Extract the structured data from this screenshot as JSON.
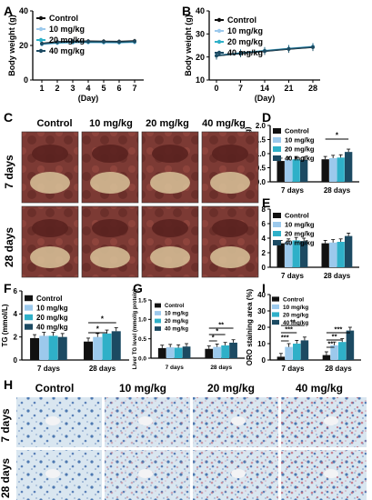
{
  "legend": [
    "Control",
    "10 mg/kg",
    "20 mg/kg",
    "40 mg/kg"
  ],
  "colors": {
    "Control": "#111111",
    "10 mg/kg": "#9cc9ec",
    "20 mg/kg": "#2fb0c8",
    "40 mg/kg": "#1c4a62"
  },
  "panel_letters": [
    "A",
    "B",
    "C",
    "D",
    "E",
    "F",
    "G",
    "I",
    "H"
  ],
  "photo_c": {
    "columns": [
      "Control",
      "10 mg/kg",
      "20 mg/kg",
      "40 mg/kg"
    ],
    "rows": [
      "7 days",
      "28 days"
    ]
  },
  "photo_h": {
    "columns": [
      "Control",
      "10 mg/kg",
      "20 mg/kg",
      "40 mg/kg"
    ],
    "rows": [
      "7 days",
      "28 days"
    ]
  },
  "chart_data": [
    {
      "id": "A",
      "type": "line",
      "ylabel": "Body weight (g)",
      "xlabel": "(Day)",
      "x": [
        1,
        2,
        3,
        4,
        5,
        6,
        7
      ],
      "ylim": [
        0,
        40
      ],
      "yticks": [
        0,
        20,
        40
      ],
      "series": [
        {
          "name": "Control",
          "values": [
            21.2,
            22.1,
            22.4,
            22.5,
            22.4,
            22.3,
            22.6
          ]
        },
        {
          "name": "10 mg/kg",
          "values": [
            20.6,
            21.3,
            21.6,
            21.7,
            21.6,
            21.5,
            21.8
          ]
        },
        {
          "name": "20 mg/kg",
          "values": [
            20.9,
            21.6,
            21.9,
            22.0,
            21.9,
            21.8,
            22.1
          ]
        },
        {
          "name": "40 mg/kg",
          "values": [
            21.0,
            21.8,
            22.1,
            22.2,
            22.1,
            22.0,
            22.3
          ]
        }
      ]
    },
    {
      "id": "B",
      "type": "line",
      "ylabel": "Body weight (g)",
      "xlabel": "(Day)",
      "x": [
        0,
        7,
        14,
        21,
        28
      ],
      "ylim": [
        10,
        40
      ],
      "yticks": [
        10,
        20,
        30,
        40
      ],
      "series": [
        {
          "name": "Control",
          "values": [
            20.5,
            21.5,
            22.5,
            23.4,
            24.2
          ]
        },
        {
          "name": "10 mg/kg",
          "values": [
            20.7,
            21.8,
            22.8,
            23.7,
            24.6
          ]
        },
        {
          "name": "20 mg/kg",
          "values": [
            20.6,
            21.7,
            22.7,
            23.6,
            24.4
          ]
        },
        {
          "name": "40 mg/kg",
          "values": [
            20.6,
            21.6,
            22.6,
            23.5,
            24.3
          ]
        }
      ]
    },
    {
      "id": "D",
      "type": "bar",
      "ylabel": "Liver weight (g)",
      "categories": [
        "7 days",
        "28 days"
      ],
      "ylim": [
        0,
        2.0
      ],
      "yticks": [
        "0.0",
        "0.5",
        "1.0",
        "1.5",
        "2.0"
      ],
      "series": [
        {
          "name": "Control",
          "values": [
            0.74,
            0.8
          ]
        },
        {
          "name": "10 mg/kg",
          "values": [
            0.78,
            0.84
          ]
        },
        {
          "name": "20 mg/kg",
          "values": [
            0.8,
            0.86
          ]
        },
        {
          "name": "40 mg/kg",
          "values": [
            0.78,
            1.06
          ]
        }
      ],
      "significance": [
        "*"
      ]
    },
    {
      "id": "E",
      "type": "bar",
      "ylabel": "Liver index (%)",
      "categories": [
        "7 days",
        "28 days"
      ],
      "ylim": [
        0,
        8
      ],
      "yticks": [
        0,
        2,
        4,
        6,
        8
      ],
      "series": [
        {
          "name": "Control",
          "values": [
            3.3,
            3.3
          ]
        },
        {
          "name": "10 mg/kg",
          "values": [
            3.5,
            3.4
          ]
        },
        {
          "name": "20 mg/kg",
          "values": [
            3.7,
            3.5
          ]
        },
        {
          "name": "40 mg/kg",
          "values": [
            3.6,
            4.3
          ]
        }
      ]
    },
    {
      "id": "F",
      "type": "bar",
      "ylabel": "TG (mmol/L)",
      "categories": [
        "7 days",
        "28 days"
      ],
      "ylim": [
        0,
        6
      ],
      "yticks": [
        0,
        2,
        4,
        6
      ],
      "series": [
        {
          "name": "Control",
          "values": [
            1.9,
            1.6
          ]
        },
        {
          "name": "10 mg/kg",
          "values": [
            2.1,
            2.0
          ]
        },
        {
          "name": "20 mg/kg",
          "values": [
            2.1,
            2.3
          ]
        },
        {
          "name": "40 mg/kg",
          "values": [
            2.0,
            2.5
          ]
        }
      ],
      "significance": [
        "*",
        "*"
      ]
    },
    {
      "id": "G",
      "type": "bar",
      "ylabel": "Liver TG level (mmol/g protein)",
      "categories": [
        "7 days",
        "28 days"
      ],
      "ylim": [
        0,
        1.5
      ],
      "yticks": [
        "0.0",
        "0.5",
        "1.0",
        "1.5"
      ],
      "series": [
        {
          "name": "Control",
          "values": [
            0.26,
            0.24
          ]
        },
        {
          "name": "10 mg/kg",
          "values": [
            0.28,
            0.29
          ]
        },
        {
          "name": "20 mg/kg",
          "values": [
            0.27,
            0.33
          ]
        },
        {
          "name": "40 mg/kg",
          "values": [
            0.3,
            0.4
          ]
        }
      ],
      "significance": [
        "*",
        "*",
        "**"
      ]
    },
    {
      "id": "I",
      "type": "bar",
      "ylabel": "ORO staining area (%)",
      "categories": [
        "7 days",
        "28 days"
      ],
      "ylim": [
        0,
        40
      ],
      "yticks": [
        0,
        10,
        20,
        30,
        40
      ],
      "series": [
        {
          "name": "Control",
          "values": [
            2,
            3
          ]
        },
        {
          "name": "10 mg/kg",
          "values": [
            8,
            9
          ]
        },
        {
          "name": "20 mg/kg",
          "values": [
            10,
            11
          ]
        },
        {
          "name": "40 mg/kg",
          "values": [
            12,
            18
          ]
        }
      ],
      "significance": [
        "***",
        "***",
        "**",
        "**",
        "**",
        "***"
      ]
    }
  ]
}
